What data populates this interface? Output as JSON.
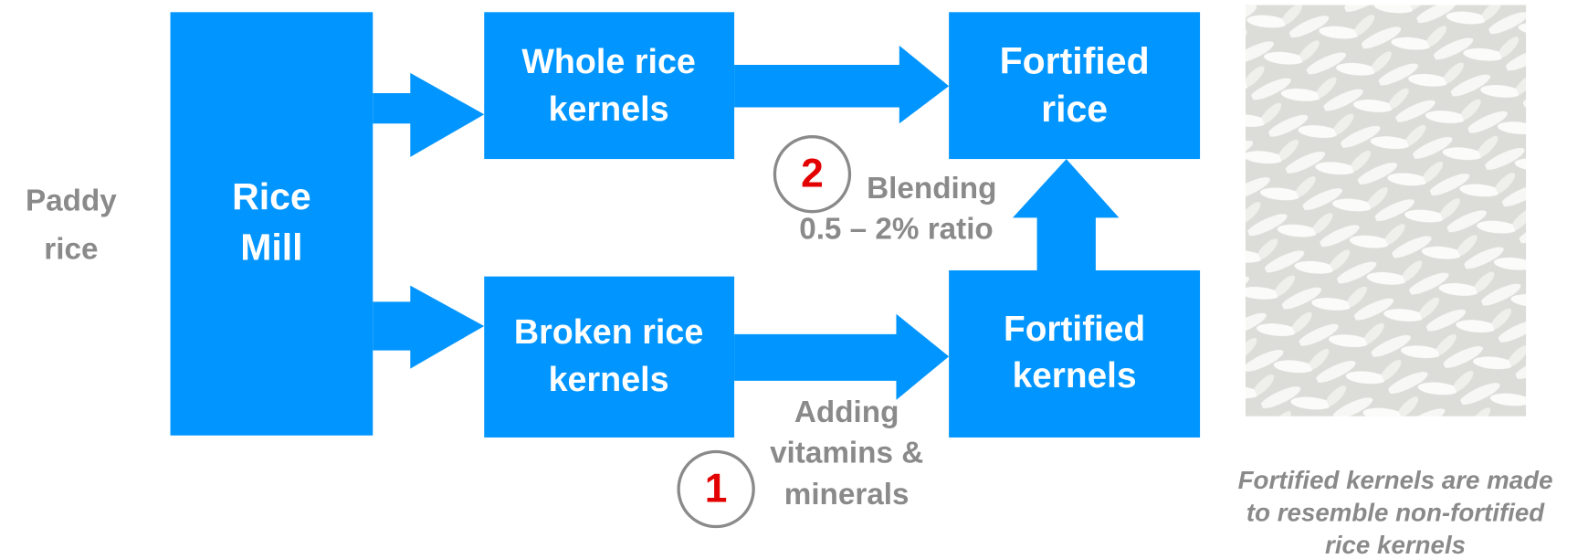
{
  "input": {
    "lines": [
      "Paddy",
      "rice"
    ]
  },
  "nodes": [
    {
      "lines": [
        "Rice",
        "Mill"
      ]
    },
    {
      "lines": [
        "Whole rice",
        "kernels"
      ]
    },
    {
      "lines": [
        "Broken rice",
        "kernels"
      ]
    },
    {
      "lines": [
        "Fortified",
        "rice"
      ]
    },
    {
      "lines": [
        "Fortified",
        "kernels"
      ]
    }
  ],
  "steps": [
    {
      "number": "1",
      "lines": [
        "Adding",
        "vitamins &",
        "minerals"
      ]
    },
    {
      "number": "2",
      "lines": [
        "Blending",
        "0.5 – 2% ratio"
      ]
    }
  ],
  "image": {
    "caption": [
      "Fortified kernels are made",
      "to resemble non-fortified",
      "rice kernels"
    ]
  }
}
